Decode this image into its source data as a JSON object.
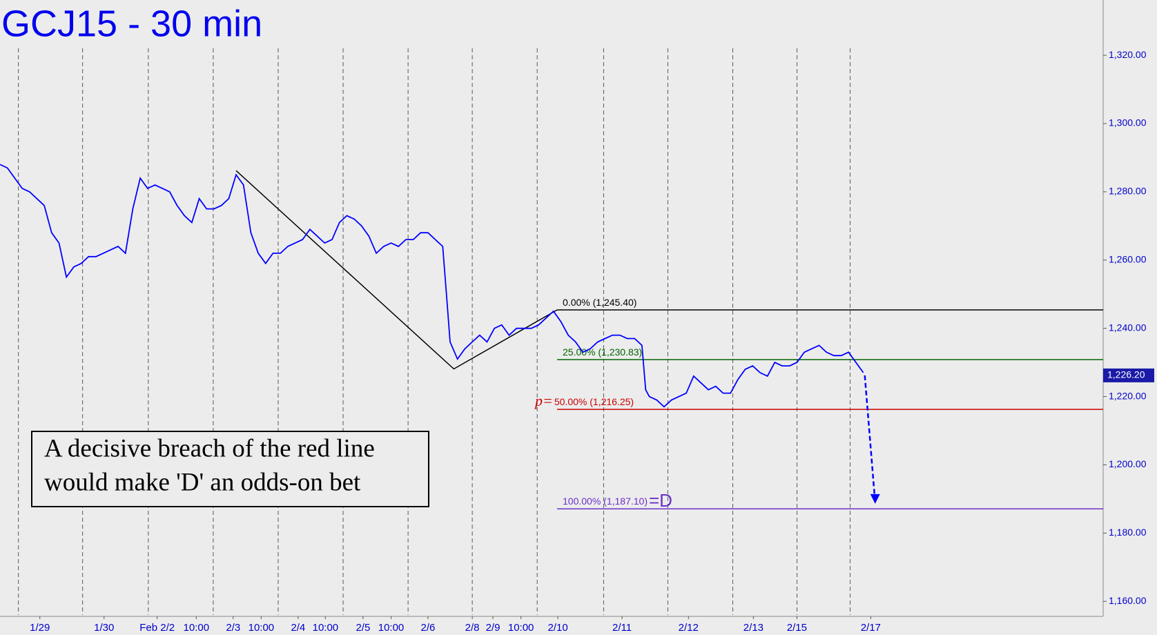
{
  "chart_data": {
    "type": "line",
    "title": "GCJ15 - 30 min",
    "annotation": [
      "A decisive breach of the red line",
      "would make 'D' an odds-on bet"
    ],
    "xlim": [
      0,
      149.5
    ],
    "ylim": [
      1156,
      1336
    ],
    "yticks": [
      {
        "value": 1160,
        "label": "1,160.00"
      },
      {
        "value": 1180,
        "label": "1,180.00"
      },
      {
        "value": 1200,
        "label": "1,200.00"
      },
      {
        "value": 1220,
        "label": "1,220.00"
      },
      {
        "value": 1240,
        "label": "1,240.00"
      },
      {
        "value": 1260,
        "label": "1,260.00"
      },
      {
        "value": 1280,
        "label": "1,280.00"
      },
      {
        "value": 1300,
        "label": "1,300.00"
      },
      {
        "value": 1320,
        "label": "1,320.00"
      }
    ],
    "xticks": [
      {
        "value": 5.4,
        "label": "1/29"
      },
      {
        "value": 14.1,
        "label": "1/30"
      },
      {
        "value": 21.3,
        "label": "Feb 2/2"
      },
      {
        "value": 26.6,
        "label": "10:00"
      },
      {
        "value": 31.6,
        "label": "2/3"
      },
      {
        "value": 35.4,
        "label": "10:00"
      },
      {
        "value": 40.4,
        "label": "2/4"
      },
      {
        "value": 44.1,
        "label": "10:00"
      },
      {
        "value": 49.2,
        "label": "2/5"
      },
      {
        "value": 53.0,
        "label": "10:00"
      },
      {
        "value": 58.0,
        "label": "2/6"
      },
      {
        "value": 64.0,
        "label": "2/8"
      },
      {
        "value": 66.8,
        "label": "2/9"
      },
      {
        "value": 70.6,
        "label": "10:00"
      },
      {
        "value": 75.6,
        "label": "2/10"
      },
      {
        "value": 84.3,
        "label": "2/11"
      },
      {
        "value": 93.3,
        "label": "2/12"
      },
      {
        "value": 102.1,
        "label": "2/13"
      },
      {
        "value": 108.0,
        "label": "2/15"
      },
      {
        "value": 118.0,
        "label": "2/17"
      }
    ],
    "x_gridlines": [
      2.5,
      11.2,
      20.1,
      28.9,
      37.7,
      46.5,
      55.3,
      64.0,
      72.8,
      81.8,
      90.5,
      99.3,
      108.0,
      115.2
    ],
    "series": [
      {
        "name": "GCJ15",
        "color": "#0000ff",
        "x": [
          0,
          1,
          2,
          3,
          4,
          5,
          6,
          7,
          8,
          9,
          10,
          11,
          12,
          13,
          14,
          15,
          16,
          17,
          18,
          19,
          20,
          21,
          22,
          23,
          24,
          25,
          26,
          27,
          28,
          29,
          30,
          31,
          32,
          33,
          34,
          35,
          36,
          37,
          38,
          39,
          40,
          41,
          42,
          43,
          44,
          45,
          46,
          47,
          48,
          49,
          50,
          51,
          52,
          53,
          54,
          55,
          56,
          57,
          58,
          59,
          60,
          60.5,
          61,
          62,
          63,
          64,
          65,
          66,
          67,
          68,
          69,
          70,
          71,
          72,
          73,
          74,
          75,
          76,
          77,
          78,
          79,
          80,
          81,
          82,
          83,
          84,
          85,
          86,
          87,
          87.5,
          88,
          89,
          90,
          91,
          92,
          93,
          94,
          95,
          96,
          97,
          98,
          99,
          100,
          101,
          102,
          103,
          104,
          105,
          106,
          107,
          108,
          109,
          110,
          111,
          112,
          113,
          114,
          115,
          116,
          117
        ],
        "values": [
          1288,
          1287,
          1284,
          1281,
          1280,
          1278,
          1276,
          1268,
          1265,
          1255,
          1258,
          1259,
          1261,
          1261,
          1262,
          1263,
          1264,
          1262,
          1275,
          1284,
          1281,
          1282,
          1281,
          1280,
          1276,
          1273,
          1271,
          1278,
          1275,
          1275,
          1276,
          1278,
          1285,
          1282,
          1268,
          1262,
          1259,
          1262,
          1262,
          1264,
          1265,
          1266,
          1269,
          1267,
          1265,
          1266,
          1271,
          1273,
          1272,
          1270,
          1267,
          1262,
          1264,
          1265,
          1264,
          1266,
          1266,
          1268,
          1268,
          1266,
          1264,
          1250,
          1236,
          1231,
          1234,
          1236,
          1238,
          1236,
          1240,
          1241,
          1238,
          1240,
          1240,
          1240,
          1241,
          1243,
          1245,
          1242,
          1238,
          1236,
          1233,
          1234,
          1236,
          1237,
          1238,
          1238,
          1237,
          1237,
          1235,
          1222,
          1220,
          1219,
          1217,
          1219,
          1220,
          1221,
          1226,
          1224,
          1222,
          1223,
          1221,
          1221,
          1225,
          1228,
          1229,
          1227,
          1226,
          1230,
          1229,
          1229,
          1230,
          1233,
          1234,
          1235,
          1233,
          1232,
          1232,
          1233,
          1230,
          1227
        ]
      }
    ],
    "pattern": {
      "color": "#000000",
      "x": [
        32,
        61.5,
        75.5
      ],
      "values": [
        1286.2,
        1228.1,
        1245.4
      ]
    },
    "projection": {
      "color": "#0000ff",
      "x": [
        117.2,
        118.6
      ],
      "values": [
        1226.2,
        1189
      ]
    },
    "levels": [
      {
        "label": "0.00% (1,245.40)",
        "value": 1245.4,
        "color": "#000000",
        "x": 75.5
      },
      {
        "label": "25.00% (1,230.83)",
        "value": 1230.83,
        "color": "#006400",
        "x": 75.5
      },
      {
        "prefix": "p=",
        "label": "50.00% (1,216.25)",
        "value": 1216.25,
        "color": "#cc0000",
        "x": 75.5
      },
      {
        "label": "100.00% (1,187.10)",
        "suffix": "=D",
        "value": 1187.1,
        "color": "#6a2fc8",
        "x": 75.5
      }
    ],
    "last_price": {
      "value": 1226.2,
      "label": "1,226.20"
    }
  }
}
